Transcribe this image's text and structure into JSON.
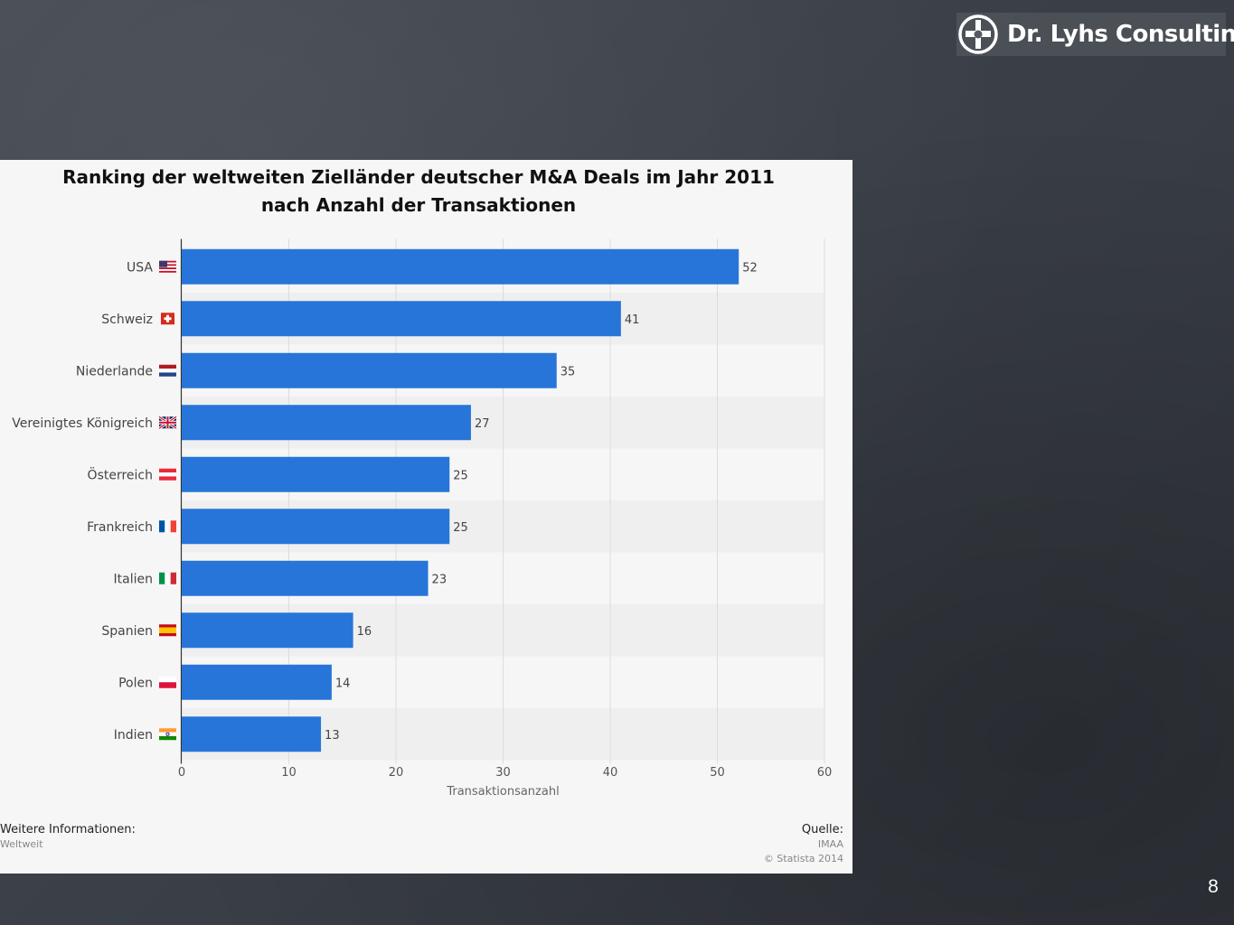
{
  "logo": {
    "text": "Dr. Lyhs Consulting"
  },
  "page_number": "8",
  "footer": {
    "info_label": "Weitere Informationen:",
    "info_value": "Weltweit",
    "source_label": "Quelle:",
    "source_value": "IMAA",
    "copyright": "© Statista 2014"
  },
  "colors": {
    "bar": "#2775d9",
    "panel": "#f6f6f6",
    "band": "#efefef",
    "grid": "#dcdcdc"
  },
  "chart_data": {
    "type": "bar",
    "orientation": "horizontal",
    "title": "Ranking der weltweiten Zielländer deutscher M&A Deals im Jahr 2011",
    "subtitle": "nach Anzahl der Transaktionen",
    "xlabel": "Transaktionsanzahl",
    "ylabel": "",
    "xlim": [
      0,
      60
    ],
    "xticks": [
      0,
      10,
      20,
      30,
      40,
      50,
      60
    ],
    "grid": true,
    "legend": "none",
    "categories": [
      "USA",
      "Schweiz",
      "Niederlande",
      "Vereinigtes Königreich",
      "Österreich",
      "Frankreich",
      "Italien",
      "Spanien",
      "Polen",
      "Indien"
    ],
    "flags": [
      "us-flag-icon",
      "ch-flag-icon",
      "nl-flag-icon",
      "uk-flag-icon",
      "at-flag-icon",
      "fr-flag-icon",
      "it-flag-icon",
      "es-flag-icon",
      "pl-flag-icon",
      "in-flag-icon"
    ],
    "values": [
      52,
      41,
      35,
      27,
      25,
      25,
      23,
      16,
      14,
      13
    ]
  }
}
